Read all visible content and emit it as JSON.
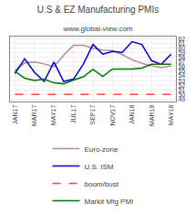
{
  "chart_data": {
    "type": "line",
    "title": "U.S & EZ Manufacturing PMIs",
    "subtitle": "www.global-view.com",
    "categories": [
      "JAN17",
      null,
      "MAR17",
      null,
      "MAY17",
      null,
      "JUL17",
      null,
      "SEP17",
      null,
      "NOV17",
      null,
      "JAN18",
      null,
      "MAR18",
      null,
      "MAY18"
    ],
    "series": [
      {
        "name": "Euro-zone",
        "color": "#bb8899",
        "values": [
          55.2,
          56.8,
          57.0,
          56.6,
          56.0,
          58.5,
          60.6,
          60.6,
          60.0,
          59.6,
          59.5,
          58.6,
          57.5,
          56.7,
          56.2,
          55.8,
          56.2
        ]
      },
      {
        "name": "U.S. ISM",
        "color": "#0000dd",
        "values": [
          54.5,
          57.7,
          54.8,
          52.8,
          57.0,
          52.8,
          53.3,
          56.5,
          60.8,
          58.7,
          59.3,
          59.1,
          61.4,
          60.8,
          57.3,
          56.5,
          58.7
        ]
      },
      {
        "name": "boom/bust",
        "color": "#ff4444",
        "line_style": "dashed",
        "values": [
          50,
          50,
          50,
          50,
          50,
          50,
          50,
          50,
          50,
          50,
          50,
          50,
          50,
          50,
          50,
          50,
          50
        ]
      },
      {
        "name": "Markit Mfg PMI",
        "color": "#007700",
        "values": [
          55.0,
          53.5,
          53.0,
          53.3,
          52.5,
          52.3,
          53.1,
          53.8,
          55.4,
          53.9,
          55.5,
          55.5,
          55.5,
          55.7,
          56.5,
          56.5,
          56.5
        ]
      }
    ],
    "ylim": [
      48.5,
      62.5
    ],
    "yticks": [
      49,
      50,
      51,
      52,
      53,
      54,
      55,
      56,
      57,
      58,
      59,
      60,
      61,
      62
    ],
    "grid": true
  }
}
